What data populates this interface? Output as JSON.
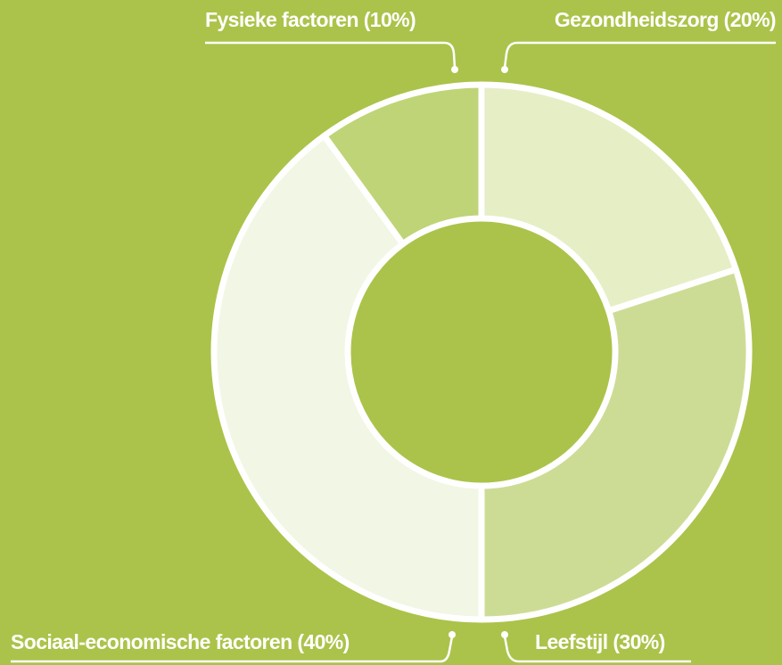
{
  "chart_data": {
    "type": "donut",
    "categories": [
      "Gezondheidszorg",
      "Leefstijl",
      "Sociaal-economische factoren",
      "Fysieke factoren"
    ],
    "values": [
      20,
      30,
      40,
      10
    ],
    "value_labels": [
      "(20%)",
      "(30%)",
      "(40%)",
      "(10%)"
    ],
    "colors": [
      "#e6eec6",
      "#cddc95",
      "#f2f6e5",
      "#bfd477"
    ]
  }
}
